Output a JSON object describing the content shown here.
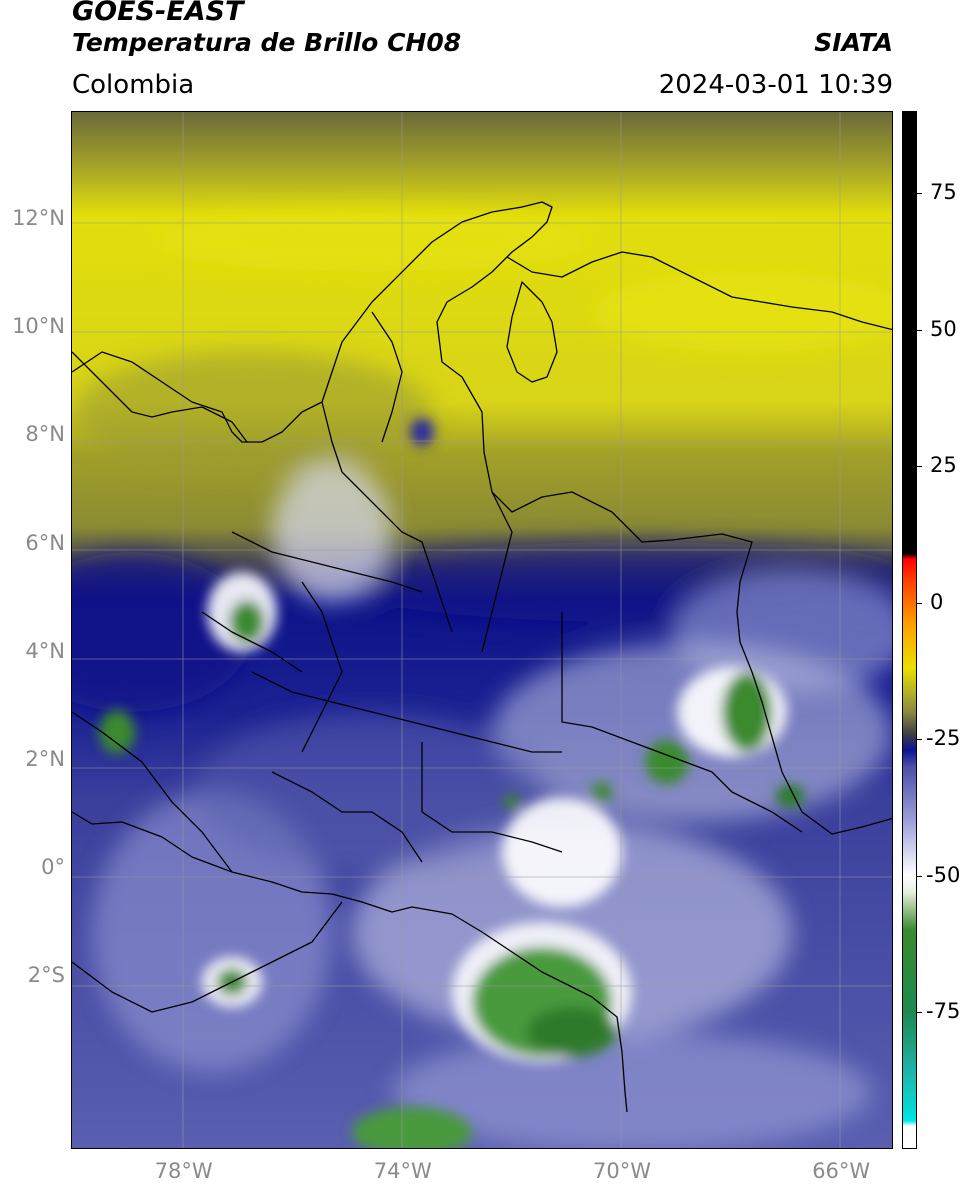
{
  "header": {
    "satellite": "GOES-EAST",
    "product": "Temperatura de Brillo CH08",
    "region": "Colombia",
    "brand": "SIATA",
    "datetime": "2024-03-01 10:39"
  },
  "axes": {
    "lat_ticks": [
      {
        "label": "12°N",
        "value": 12
      },
      {
        "label": "10°N",
        "value": 10
      },
      {
        "label": "8°N",
        "value": 8
      },
      {
        "label": "6°N",
        "value": 6
      },
      {
        "label": "4°N",
        "value": 4
      },
      {
        "label": "2°N",
        "value": 2
      },
      {
        "label": "0°",
        "value": 0
      },
      {
        "label": "2°S",
        "value": -2
      }
    ],
    "lon_ticks": [
      {
        "label": "78°W",
        "value": -78
      },
      {
        "label": "74°W",
        "value": -74
      },
      {
        "label": "70°W",
        "value": -70
      },
      {
        "label": "66°W",
        "value": -66
      }
    ],
    "lon_range": [
      -80,
      -65
    ],
    "lat_range": [
      -5.2,
      14
    ],
    "grid": true
  },
  "colorbar": {
    "range": [
      -100,
      90
    ],
    "ticks": [
      {
        "label": "75",
        "value": 75
      },
      {
        "label": "50",
        "value": 50
      },
      {
        "label": "25",
        "value": 25
      },
      {
        "label": "0",
        "value": 0
      },
      {
        "label": "-25",
        "value": -25
      },
      {
        "label": "-50",
        "value": -50
      },
      {
        "label": "-75",
        "value": -75
      }
    ],
    "stops": [
      {
        "v": -100,
        "c": "#ffffff"
      },
      {
        "v": -96,
        "c": "#ffffff"
      },
      {
        "v": -95,
        "c": "#00e5e5"
      },
      {
        "v": -85,
        "c": "#20b0a0"
      },
      {
        "v": -75,
        "c": "#1c8a50"
      },
      {
        "v": -60,
        "c": "#3a8a2e"
      },
      {
        "v": -53,
        "c": "#e8f0e0"
      },
      {
        "v": -50,
        "c": "#ffffff"
      },
      {
        "v": -40,
        "c": "#9ca0d8"
      },
      {
        "v": -30,
        "c": "#4a4fa8"
      },
      {
        "v": -27,
        "c": "#0a1590"
      },
      {
        "v": -24,
        "c": "#404040"
      },
      {
        "v": -20,
        "c": "#8a8a40"
      },
      {
        "v": -12,
        "c": "#e8e000"
      },
      {
        "v": -4,
        "c": "#ffa000"
      },
      {
        "v": 4,
        "c": "#ff4000"
      },
      {
        "v": 8,
        "c": "#ff0000"
      },
      {
        "v": 9,
        "c": "#000000"
      },
      {
        "v": 90,
        "c": "#000000"
      }
    ]
  },
  "map_colors": {
    "yellow": "#e2de0c",
    "olive": "#a2a028",
    "dark_olive": "#6a6a3a",
    "navy": "#0c1288",
    "blue": "#3a3f9c",
    "periwinkle": "#8a90cc",
    "white": "#ffffff",
    "green": "#3a8a2e",
    "light_green": "#9bc48a"
  }
}
